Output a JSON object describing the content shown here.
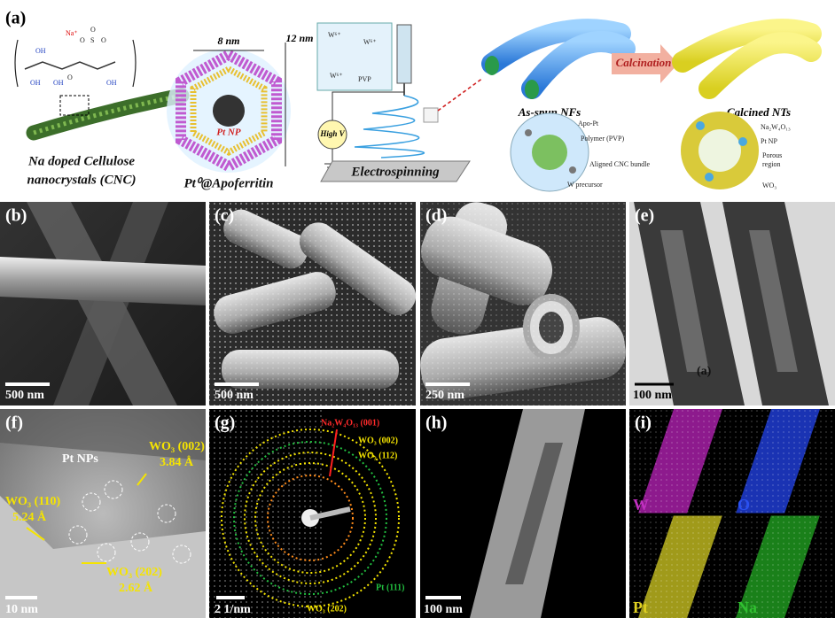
{
  "panel_a": {
    "label": "(a)",
    "cnc_structure_labels": [
      "Na⁺",
      "O",
      "S",
      "O",
      "O",
      "OH",
      "OH",
      "OH",
      "OH",
      "O"
    ],
    "cnc_caption": [
      "Na doped Cellulose",
      "nanocrystals (CNC)"
    ],
    "apoferritin": {
      "width": "8 nm",
      "height": "12 nm",
      "core": "Pt NP",
      "caption": "Pt⁰@Apoferritin"
    },
    "electrospinning": {
      "solution": "PVP",
      "ion": "W⁶⁺",
      "voltage": "High V",
      "caption": "Electrospinning"
    },
    "as_spun": {
      "caption": "As-spun NFs",
      "legend": [
        "Apo-Pt",
        "Polymer (PVP)",
        "Aligned CNC bundle",
        "W precursor"
      ]
    },
    "calcination": "Calcination",
    "calcined": {
      "caption": "Calcined NTs",
      "legend": [
        "Na₂W₄O₁₃",
        "Pt NP",
        "Porous",
        "region",
        "WO₃"
      ]
    }
  },
  "panels": [
    {
      "label": "(b)",
      "scale_bar": "500 nm"
    },
    {
      "label": "(c)",
      "scale_bar": "500 nm"
    },
    {
      "label": "(d)",
      "scale_bar": "250 nm"
    },
    {
      "label": "(e)",
      "scale_bar": "100 nm",
      "inset_text": "(a)"
    },
    {
      "label": "(f)",
      "scale_bar": "10 nm",
      "annotations": [
        "Pt NPs",
        "WO₃ (002)",
        "3.84 Å",
        "WO₃ (110)",
        "5.24 Å",
        "WO₃ (202)",
        "2.62 Å"
      ]
    },
    {
      "label": "(g)",
      "scale_bar": "2 1/nm",
      "annotations": [
        "Na₂W₄O₁₃ (001)",
        "WO₃ (002)",
        "WO₃ (112)",
        "Pt (111)",
        "WO₃ (202)"
      ]
    },
    {
      "label": "(h)",
      "scale_bar": "100 nm"
    },
    {
      "label": "(i)",
      "elements": [
        "W",
        "O",
        "Pt",
        "Na"
      ]
    }
  ]
}
